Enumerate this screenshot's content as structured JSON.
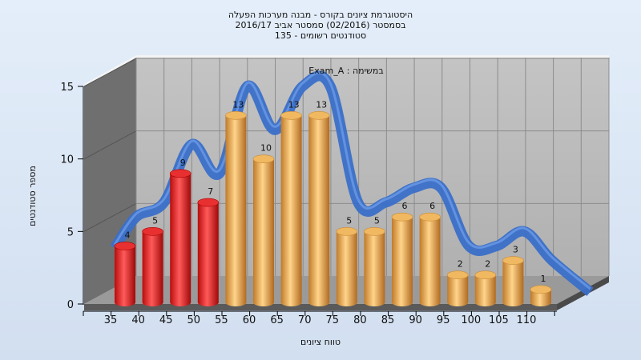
{
  "chart_data": {
    "type": "bar",
    "title_lines": [
      "היסטוגרמת ציונים בקורס - מבנה מערכות הפעלה",
      "בסמסטר  (02/2016)  סמסטר אביב 2016/17",
      "סטודנטים רשומים - 135"
    ],
    "inner_label": "Exam_A : במשימה",
    "xlabel": "טווח ציונים",
    "ylabel": "מספר סטודנטים",
    "categories": [
      "35",
      "40",
      "45",
      "50",
      "55",
      "60",
      "65",
      "70",
      "75",
      "80",
      "85",
      "90",
      "95",
      "100",
      "105",
      "110"
    ],
    "values": [
      4,
      5,
      9,
      7,
      13,
      10,
      13,
      13,
      5,
      5,
      6,
      6,
      2,
      2,
      3,
      1
    ],
    "bar_colors": [
      "#e82020",
      "#e82020",
      "#e82020",
      "#e82020",
      "#e8a850",
      "#e8a850",
      "#e8a850",
      "#e8a850",
      "#e8a850",
      "#e8a850",
      "#e8a850",
      "#e8a850",
      "#e8a850",
      "#e8a850",
      "#e8a850",
      "#e8a850"
    ],
    "ylim": [
      0,
      15
    ],
    "yticks": [
      0,
      5,
      10,
      15
    ],
    "curve_color": "#3a6fc8",
    "grid": true
  }
}
